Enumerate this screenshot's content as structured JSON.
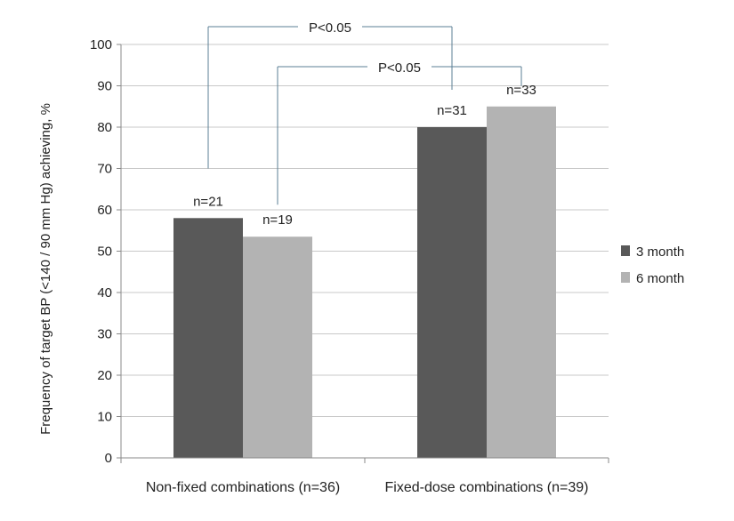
{
  "chart_data": {
    "type": "bar",
    "title": "",
    "xlabel": "",
    "ylabel": "Frequency of target BP (<140 / 90 mm Hg) achieving, %",
    "ylim": [
      0,
      100
    ],
    "yticks": [
      0,
      10,
      20,
      30,
      40,
      50,
      60,
      70,
      80,
      90,
      100
    ],
    "grid": true,
    "legend_position": "right",
    "categories": [
      "Non-fixed combinations (n=36)",
      "Fixed-dose combinations (n=39)"
    ],
    "series": [
      {
        "name": "3 month",
        "color": "#595959",
        "values": [
          58,
          80
        ],
        "labels": [
          "n=21",
          "n=31"
        ]
      },
      {
        "name": "6 month",
        "color": "#b3b3b3",
        "values": [
          53.5,
          85
        ],
        "labels": [
          "n=19",
          "n=33"
        ]
      }
    ],
    "annotations": [
      {
        "text": "P<0.05",
        "from": {
          "category": 0,
          "series": 0
        },
        "to": {
          "category": 1,
          "series": 0
        }
      },
      {
        "text": "P<0.05",
        "from": {
          "category": 0,
          "series": 1
        },
        "to": {
          "category": 1,
          "series": 1
        }
      }
    ]
  }
}
